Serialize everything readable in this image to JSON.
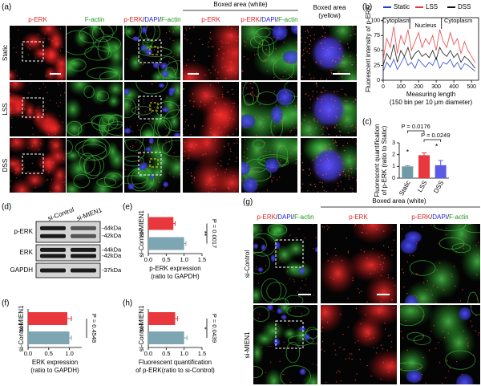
{
  "panel_labels": [
    "(a)",
    "(b)",
    "(c)",
    "(d)",
    "(e)",
    "(f)",
    "(g)",
    "(h)"
  ],
  "figure_a": {
    "headers": {
      "single": [
        "p-ERK",
        "F-actin"
      ],
      "merge": [
        "p-ERK",
        "/",
        "DAPI",
        "/",
        "F-actin"
      ],
      "boxed_white": "Boxed area (white)",
      "boxed_white_single": "p-ERK",
      "boxed_white_merge": [
        "p-ERK",
        "/",
        "DAPI",
        "/",
        "F-actin"
      ],
      "boxed_yellow": [
        "Boxed area",
        "(yellow)"
      ]
    },
    "rows": [
      "Static",
      "LSS",
      "DSS"
    ]
  },
  "figure_d": {
    "lanes": [
      "si-Control",
      "si-MIEN1"
    ],
    "bands": [
      {
        "name": "p-ERK",
        "sizes": [
          "-44kDa",
          "-42kDa"
        ]
      },
      {
        "name": "ERK",
        "sizes": [
          "-44kDa",
          "-42kDa"
        ]
      },
      {
        "name": "GAPDH",
        "sizes": [
          "-37kDa"
        ]
      }
    ]
  },
  "figure_g": {
    "merge": [
      "p-ERK",
      "/",
      "DAPI",
      "/",
      "F-actin"
    ],
    "boxed_white": "Boxed area (white)",
    "boxed_single": "p-ERK",
    "boxed_merge": [
      "p-ERK",
      "/",
      "DAPI",
      "/",
      "F-actin"
    ],
    "rows": [
      "si-Control",
      "si-MIEN1"
    ]
  },
  "chart_data": [
    {
      "type": "line",
      "legend": "top",
      "x": [
        0,
        20,
        40,
        60,
        80,
        100,
        120,
        140,
        160,
        180,
        200,
        220,
        240,
        260,
        280,
        300,
        320,
        340,
        360,
        380,
        400,
        420,
        440,
        460,
        480,
        500,
        520
      ],
      "series": [
        {
          "name": "Static",
          "color": "#1f3fd0",
          "values": [
            15,
            30,
            22,
            35,
            18,
            28,
            40,
            25,
            30,
            20,
            35,
            28,
            22,
            30,
            25,
            38,
            20,
            30,
            27,
            35,
            22,
            30,
            18,
            28,
            25,
            20,
            15
          ]
        },
        {
          "name": "LSS",
          "color": "#e8383d",
          "values": [
            35,
            70,
            55,
            90,
            45,
            75,
            60,
            85,
            50,
            65,
            80,
            55,
            70,
            60,
            75,
            50,
            85,
            65,
            55,
            80,
            60,
            70,
            45,
            65,
            50,
            40,
            30
          ]
        },
        {
          "name": "DSS",
          "color": "#111111",
          "values": [
            25,
            45,
            35,
            60,
            30,
            50,
            40,
            55,
            35,
            45,
            50,
            40,
            45,
            38,
            50,
            35,
            55,
            45,
            40,
            50,
            38,
            45,
            30,
            40,
            35,
            28,
            20
          ]
        }
      ],
      "xlim": [
        0,
        540
      ],
      "ylim": [
        0,
        105
      ],
      "xticks": [
        0,
        100,
        200,
        300,
        400,
        500
      ],
      "yticks": [
        0,
        25,
        50,
        75,
        100
      ],
      "ylabel": "Fluorescent intensity of p-ERK",
      "xlabel": [
        "Measuring length",
        "(150 bin per 10 μm diameter)"
      ],
      "annotations": [
        "Cytoplasm",
        "Nucleus",
        "Cytoplasm"
      ]
    },
    {
      "type": "bar",
      "categories": [
        "Static",
        "LSS",
        "DSS"
      ],
      "values": [
        1.0,
        1.95,
        1.1
      ],
      "errors": [
        0.05,
        0.2,
        0.4
      ],
      "colors": [
        "#6f9aa6",
        "#e8383d",
        "#5b5be8"
      ],
      "ylim": [
        0,
        3
      ],
      "yticks": [
        0,
        1,
        2,
        3
      ],
      "ylabel": [
        "Fluorescent quantification",
        "of p-ERK (ratio to Static)"
      ],
      "annotations": [
        "P = 0.0176",
        "P = 0.0249",
        "*",
        "*"
      ]
    },
    {
      "type": "hbar",
      "categories": [
        "si-MIEN1",
        "si-Control"
      ],
      "values": [
        0.7,
        1.0
      ],
      "errors": [
        0.05,
        0.05
      ],
      "colors": [
        "#e8383d",
        "#7ea6b2"
      ],
      "xlim": [
        0,
        1.5
      ],
      "xticks": [
        {
          "value": 0,
          "label": "0.0"
        },
        0.5,
        {
          "value": 1,
          "label": "1.0"
        },
        1.5
      ],
      "xlabel": [
        "p-ERK expression",
        "(ratio to GAPDH)"
      ],
      "annotations": [
        "P = 0.0017",
        "**"
      ]
    },
    {
      "type": "hbar",
      "categories": [
        "si-MIEN1",
        "si-Control"
      ],
      "values": [
        0.95,
        1.0
      ],
      "errors": [
        0.1,
        0.05
      ],
      "colors": [
        "#e8383d",
        "#7ea6b2"
      ],
      "xlim": [
        0,
        1.3
      ],
      "xticks": [
        {
          "value": 0,
          "label": "0.0"
        },
        0.5,
        {
          "value": 1,
          "label": "1.0"
        }
      ],
      "xlabel": [
        "ERK expression",
        "(ratio to GAPDH)"
      ],
      "annotations": [
        "P = 0.4548"
      ]
    },
    {
      "type": "hbar",
      "categories": [
        "si-MIEN1",
        "si-Control"
      ],
      "values": [
        0.75,
        1.0
      ],
      "errors": [
        0.07,
        0.08
      ],
      "colors": [
        "#e8383d",
        "#7ea6b2"
      ],
      "xlim": [
        0,
        1.5
      ],
      "xticks": [
        {
          "value": 0,
          "label": "0.0"
        },
        0.5,
        {
          "value": 1,
          "label": "1.0"
        },
        1.5
      ],
      "xlabel": [
        "Fluorescent quantification",
        "of p-ERK(ratio to si-Control)"
      ],
      "annotations": [
        "P = 0.0439",
        "*"
      ]
    }
  ]
}
